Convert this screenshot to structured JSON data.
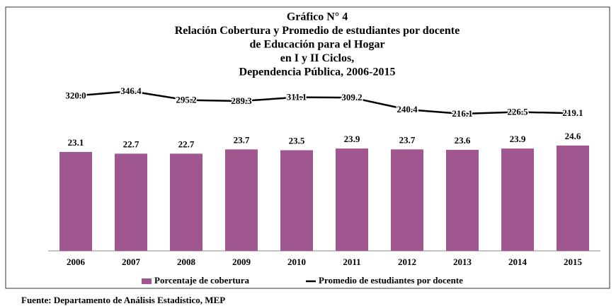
{
  "chart_data": {
    "type": "bar_line",
    "title": [
      "Gráfico N° 4",
      "Relación Cobertura y Promedio de estudiantes por docente",
      "de Educación para el Hogar",
      "en I y II Ciclos,",
      "Dependencia Pública, 2006-2015"
    ],
    "categories": [
      "2006",
      "2007",
      "2008",
      "2009",
      "2010",
      "2011",
      "2012",
      "2013",
      "2014",
      "2015"
    ],
    "series": [
      {
        "name": "Porcentaje de cobertura",
        "type": "bar",
        "color": "#a0568f",
        "values": [
          23.1,
          22.7,
          22.7,
          23.7,
          23.5,
          23.9,
          23.7,
          23.6,
          23.9,
          24.6
        ]
      },
      {
        "name": "Promedio de estudiantes por docente",
        "type": "line",
        "color": "#000000",
        "axis": "y2",
        "values": [
          320,
          346.4,
          295.2,
          289.3,
          311.1,
          309.2,
          240.4,
          216.1,
          226.5,
          219.1
        ],
        "value_labels": [
          "320.0",
          "346.4",
          "295.2",
          "289.3",
          "311.1",
          "309.2",
          "240.4",
          "216.1",
          "226.5",
          "219.1"
        ]
      }
    ],
    "source": "Fuente: Departamento de Análisis Estadístico, MEP"
  }
}
